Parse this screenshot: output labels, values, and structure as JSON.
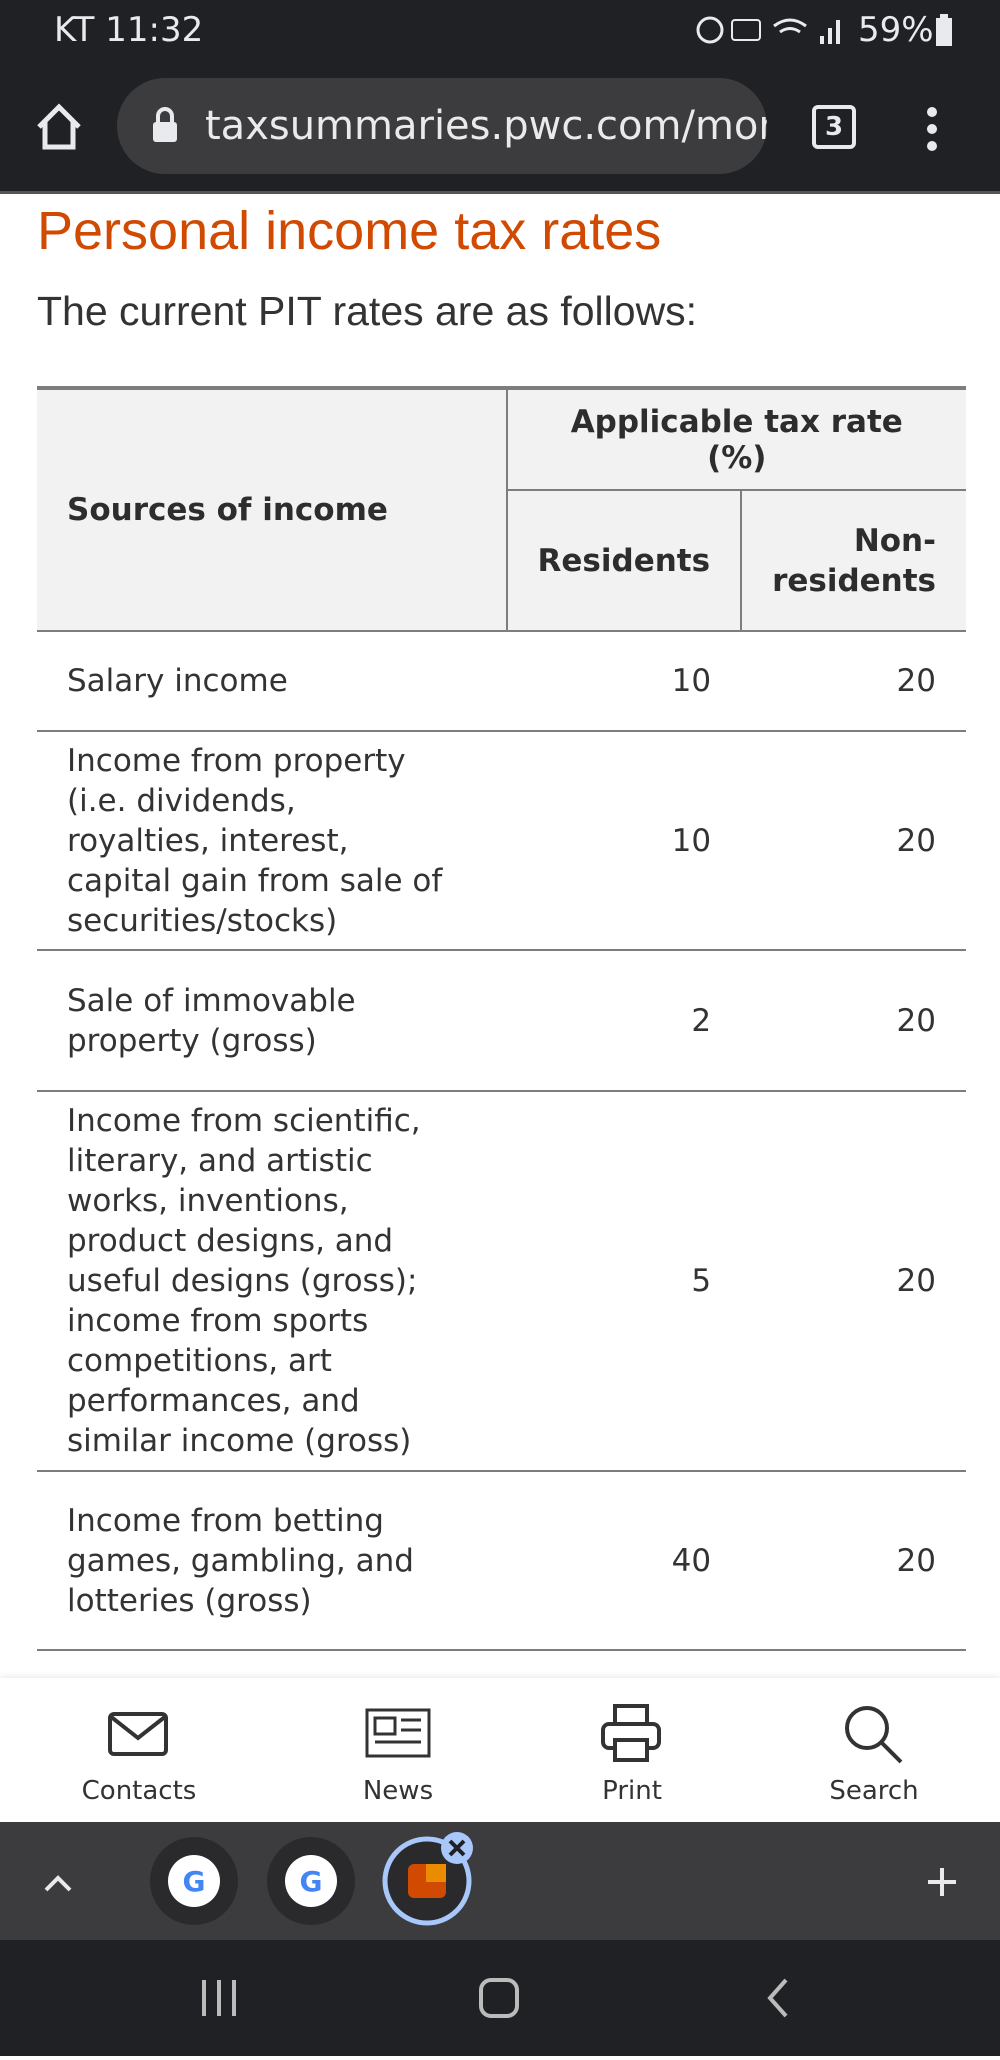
{
  "status_bar": {
    "time": "KT 11:32",
    "battery": "59%"
  },
  "browser": {
    "url": "taxsummaries.pwc.com/mor",
    "tab_count": "3"
  },
  "page": {
    "title": "Personal income tax rates",
    "subtitle": "The current PIT rates are as follows:"
  },
  "table": {
    "header": {
      "source": "Sources of income",
      "group": "Applicable tax rate (%)",
      "residents": "Residents",
      "non_residents": "Non-residents"
    },
    "rows": [
      [
        "Salary income",
        10,
        20
      ],
      [
        "Income from property (i.e. dividends, royalties, interest, capital gain from sale of securities/stocks)",
        10,
        20
      ],
      [
        "Sale of immovable property (gross)",
        2,
        20
      ],
      [
        "Income from scientific, literary, and artistic works, inventions, product designs, and useful designs (gross); income from sports competitions, art performances, and similar income (gross)",
        5,
        20
      ],
      [
        "Income from betting games, gambling, and lotteries (gross)",
        40,
        20
      ]
    ]
  },
  "bottom_nav": [
    "Contacts",
    "News",
    "Print",
    "Search"
  ]
}
